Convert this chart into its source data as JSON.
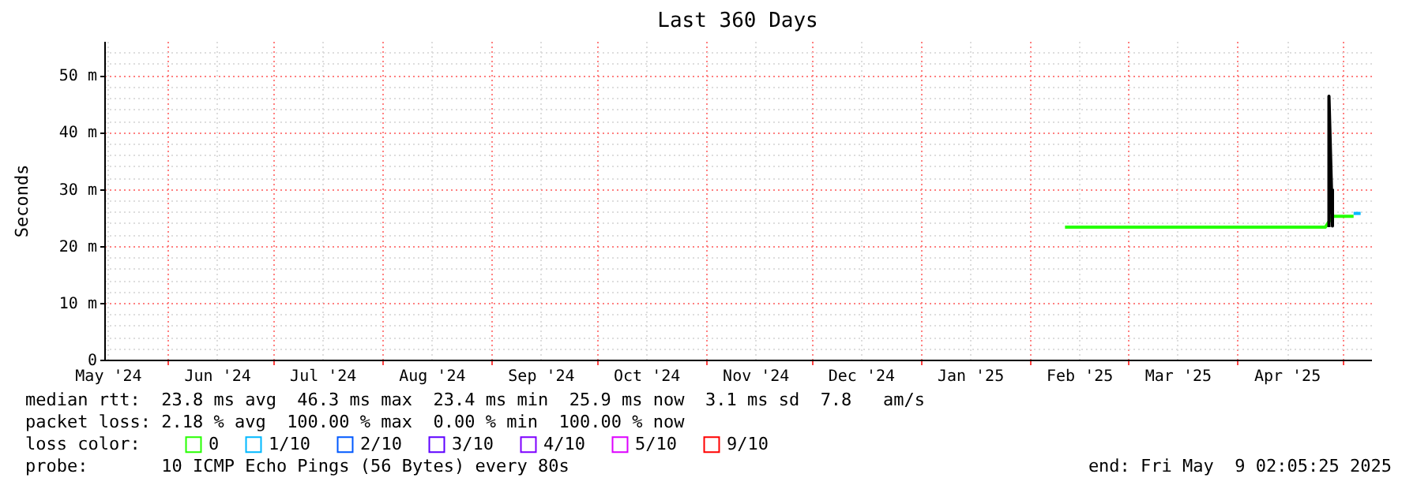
{
  "chart_data": {
    "type": "line",
    "title": "Last 360 Days",
    "ylabel": "Seconds",
    "legend_title": "loss color:",
    "xlim": [
      "2024-05-14",
      "2025-05-09"
    ],
    "xticks": [
      {
        "value": "2024-05-15",
        "label": "May '24"
      },
      {
        "value": "2024-06-01",
        "label": null
      },
      {
        "value": "2024-06-15",
        "label": "Jun '24"
      },
      {
        "value": "2024-07-01",
        "label": null
      },
      {
        "value": "2024-07-15",
        "label": "Jul '24"
      },
      {
        "value": "2024-08-01",
        "label": null
      },
      {
        "value": "2024-08-15",
        "label": "Aug '24"
      },
      {
        "value": "2024-09-01",
        "label": null
      },
      {
        "value": "2024-09-15",
        "label": "Sep '24"
      },
      {
        "value": "2024-10-01",
        "label": null
      },
      {
        "value": "2024-10-15",
        "label": "Oct '24"
      },
      {
        "value": "2024-11-01",
        "label": null
      },
      {
        "value": "2024-11-15",
        "label": "Nov '24"
      },
      {
        "value": "2024-12-01",
        "label": null
      },
      {
        "value": "2024-12-15",
        "label": "Dec '24"
      },
      {
        "value": "2025-01-01",
        "label": null
      },
      {
        "value": "2025-01-15",
        "label": "Jan '25"
      },
      {
        "value": "2025-02-01",
        "label": null
      },
      {
        "value": "2025-02-15",
        "label": "Feb '25"
      },
      {
        "value": "2025-03-01",
        "label": null
      },
      {
        "value": "2025-03-15",
        "label": "Mar '25"
      },
      {
        "value": "2025-04-01",
        "label": null
      },
      {
        "value": "2025-04-15",
        "label": "Apr '25"
      },
      {
        "value": "2025-05-01",
        "label": null
      }
    ],
    "ylim": [
      0,
      56
    ],
    "yticks": [
      {
        "value": 0,
        "label": "0"
      },
      {
        "value": 2,
        "label": null
      },
      {
        "value": 4,
        "label": null
      },
      {
        "value": 6,
        "label": null
      },
      {
        "value": 8,
        "label": null
      },
      {
        "value": 10,
        "label": "10 m"
      },
      {
        "value": 12,
        "label": null
      },
      {
        "value": 14,
        "label": null
      },
      {
        "value": 16,
        "label": null
      },
      {
        "value": 18,
        "label": null
      },
      {
        "value": 20,
        "label": "20 m"
      },
      {
        "value": 22,
        "label": null
      },
      {
        "value": 24,
        "label": null
      },
      {
        "value": 26,
        "label": null
      },
      {
        "value": 28,
        "label": null
      },
      {
        "value": 30,
        "label": "30 m"
      },
      {
        "value": 32,
        "label": null
      },
      {
        "value": 34,
        "label": null
      },
      {
        "value": 36,
        "label": null
      },
      {
        "value": 38,
        "label": null
      },
      {
        "value": 40,
        "label": "40 m"
      },
      {
        "value": 42,
        "label": null
      },
      {
        "value": 44,
        "label": null
      },
      {
        "value": 46,
        "label": null
      },
      {
        "value": 48,
        "label": null
      },
      {
        "value": 50,
        "label": "50 m"
      },
      {
        "value": 52,
        "label": null
      },
      {
        "value": 54,
        "label": null
      }
    ],
    "grid": true,
    "legend": "bottom",
    "series": [
      {
        "name": "0",
        "color": "#26ff00",
        "x": [
          "2025-02-11",
          "2025-03-15",
          "2025-04-26",
          "2025-04-28",
          "2025-05-04"
        ],
        "values": [
          23.3,
          23.3,
          23.3,
          25.2,
          25.2
        ]
      },
      {
        "name": "1/10",
        "color": "#00b8ff",
        "x": [
          "2025-05-04",
          "2025-05-06"
        ],
        "values": [
          25.7,
          25.7
        ]
      },
      {
        "name": "2/10",
        "color": "#0059ff"
      },
      {
        "name": "3/10",
        "color": "#5e00ff"
      },
      {
        "name": "4/10",
        "color": "#7e00ff"
      },
      {
        "name": "5/10",
        "color": "#dd00ff"
      },
      {
        "name": "9/10",
        "color": "#ff0000"
      },
      {
        "color": "#000000",
        "x": [
          "2025-04-27",
          "2025-04-27",
          "2025-04-28",
          "2025-04-28"
        ],
        "values": [
          23.3,
          46.3,
          23.5,
          30.0
        ]
      }
    ],
    "annotations": [
      "median rtt:  23.8 ms avg  46.3 ms max  23.4 ms min  25.9 ms now  3.1 ms sd  7.8   am/s",
      "packet loss: 2.18 % avg  100.00 % max  0.00 % min  100.00 % now",
      "probe:       10 ICMP Echo Pings (56 Bytes) every 80s",
      "end: Fri May  9 02:05:25 2025"
    ]
  }
}
